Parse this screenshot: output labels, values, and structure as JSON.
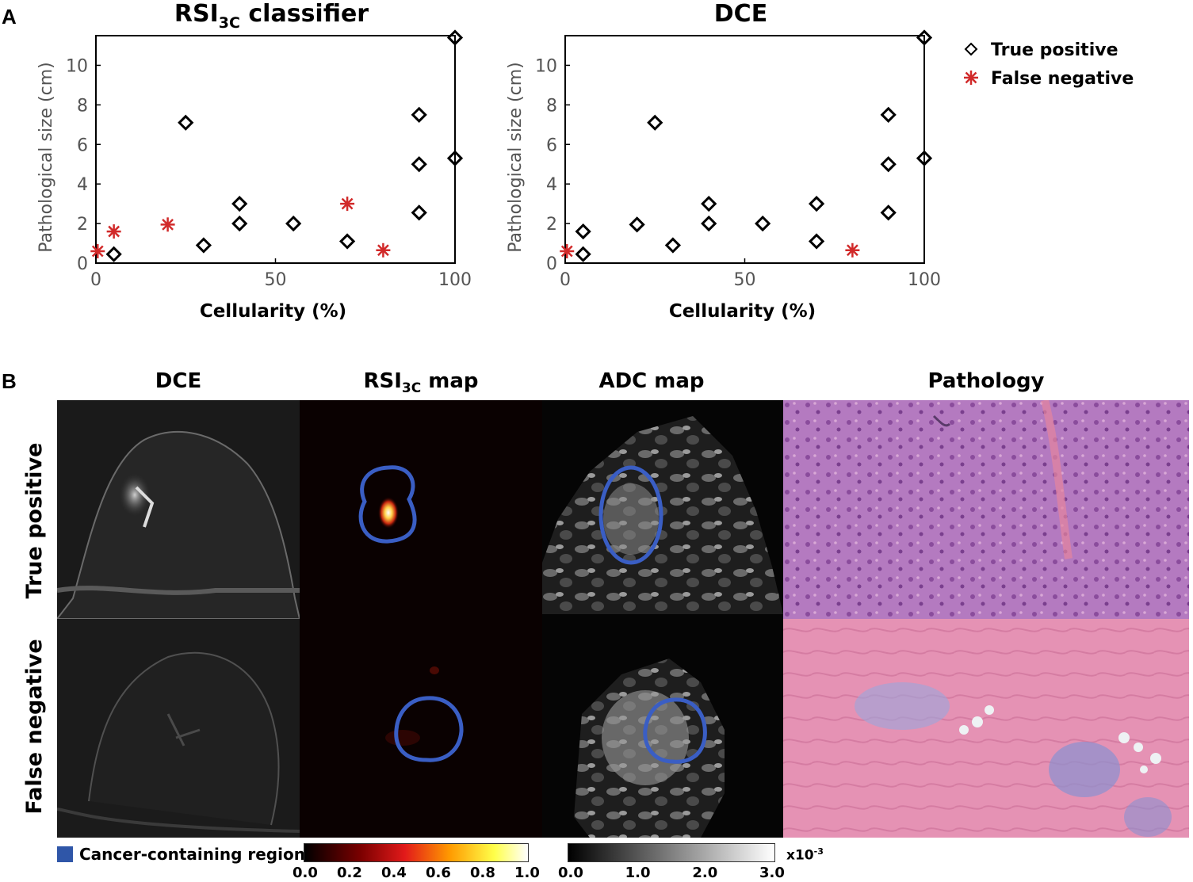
{
  "panel_a_label": "A",
  "panel_b_label": "B",
  "chart_data": [
    {
      "type": "scatter",
      "title": "RSI",
      "title_sub": "3C",
      "title_suffix": " classifier",
      "xlabel": "Cellularity (%)",
      "ylabel": "Pathological size (cm)",
      "xlim": [
        0,
        100
      ],
      "ylim": [
        0,
        11.5
      ],
      "xticks": [
        0,
        50,
        100
      ],
      "yticks": [
        0,
        2,
        4,
        6,
        8,
        10
      ],
      "grid": false,
      "series": [
        {
          "name": "True positive",
          "marker": "diamond-open",
          "color": "#000000",
          "points": [
            [
              5,
              0.45
            ],
            [
              25,
              7.1
            ],
            [
              30,
              0.9
            ],
            [
              40,
              2.0
            ],
            [
              40,
              3.0
            ],
            [
              55,
              2.0
            ],
            [
              70,
              1.1
            ],
            [
              90,
              2.55
            ],
            [
              90,
              5.0
            ],
            [
              90,
              7.5
            ],
            [
              100,
              5.3
            ],
            [
              100,
              11.4
            ]
          ]
        },
        {
          "name": "False negative",
          "marker": "asterisk",
          "color": "#d12a2a",
          "points": [
            [
              0.5,
              0.6
            ],
            [
              5,
              1.6
            ],
            [
              20,
              1.95
            ],
            [
              70,
              3.0
            ],
            [
              80,
              0.65
            ]
          ]
        }
      ]
    },
    {
      "type": "scatter",
      "title": "DCE",
      "title_sub": "",
      "title_suffix": "",
      "xlabel": "Cellularity (%)",
      "ylabel": "Pathological size (cm)",
      "xlim": [
        0,
        100
      ],
      "ylim": [
        0,
        11.5
      ],
      "xticks": [
        0,
        50,
        100
      ],
      "yticks": [
        0,
        2,
        4,
        6,
        8,
        10
      ],
      "grid": false,
      "series": [
        {
          "name": "True positive",
          "marker": "diamond-open",
          "color": "#000000",
          "points": [
            [
              5,
              0.45
            ],
            [
              5,
              1.6
            ],
            [
              20,
              1.95
            ],
            [
              25,
              7.1
            ],
            [
              30,
              0.9
            ],
            [
              40,
              2.0
            ],
            [
              40,
              3.0
            ],
            [
              55,
              2.0
            ],
            [
              70,
              1.1
            ],
            [
              70,
              3.0
            ],
            [
              90,
              2.55
            ],
            [
              90,
              5.0
            ],
            [
              90,
              7.5
            ],
            [
              100,
              5.3
            ],
            [
              100,
              11.4
            ]
          ]
        },
        {
          "name": "False negative",
          "marker": "asterisk",
          "color": "#d12a2a",
          "points": [
            [
              0.5,
              0.6
            ],
            [
              80,
              0.65
            ]
          ]
        }
      ]
    }
  ],
  "legend": {
    "placement": "right",
    "items": [
      {
        "label": "True positive",
        "marker": "diamond-open",
        "color": "#000000"
      },
      {
        "label": "False negative",
        "marker": "asterisk",
        "color": "#d12a2a"
      }
    ]
  },
  "panel_b": {
    "columns": [
      {
        "label": "DCE",
        "sub": "",
        "suffix": ""
      },
      {
        "label": "RSI",
        "sub": "3C",
        "suffix": " map"
      },
      {
        "label": "ADC map",
        "sub": "",
        "suffix": ""
      },
      {
        "label": "Pathology",
        "sub": "",
        "suffix": ""
      }
    ],
    "rows": [
      "True positive",
      "False negative"
    ],
    "region_legend": "Cancer-containing region",
    "region_color": "#2f56a8",
    "colorbar_hot": {
      "ticks": [
        "0.0",
        "0.2",
        "0.4",
        "0.6",
        "0.8",
        "1.0"
      ]
    },
    "colorbar_gray": {
      "ticks": [
        "0.0",
        "1.0",
        "2.0",
        "3.0"
      ],
      "multiplier": "x10",
      "exponent": "-3"
    }
  }
}
